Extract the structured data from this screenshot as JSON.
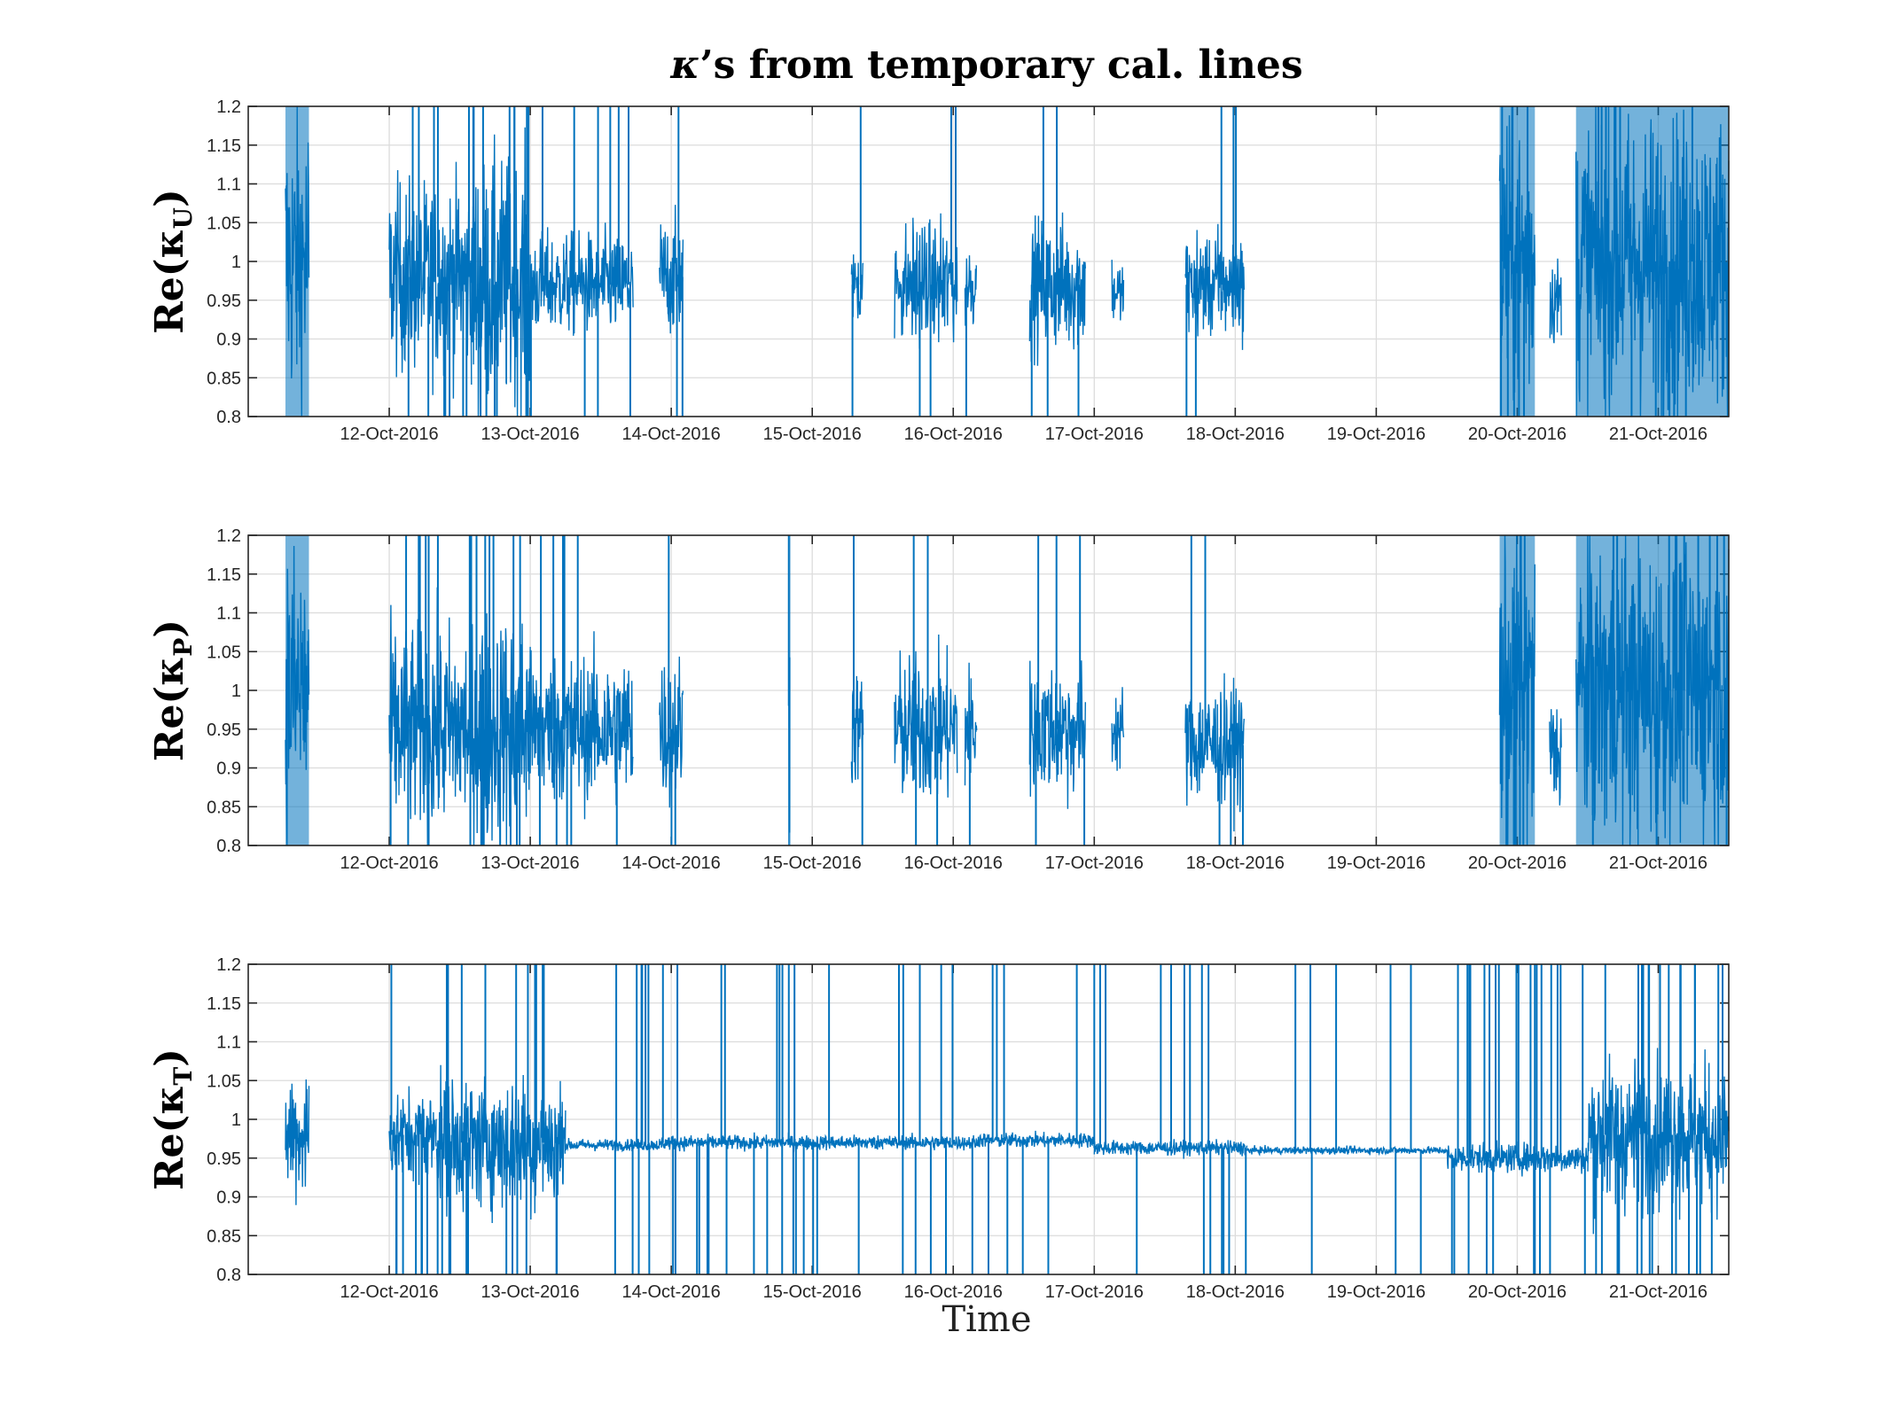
{
  "figure": {
    "title_symbol": "κ",
    "title_rest": "’s from temporary cal. lines",
    "xlabel": "Time",
    "line_color": "#0072BD"
  },
  "chart_data": [
    {
      "type": "line",
      "ylabel_main": "Re(κ",
      "ylabel_sub": "U",
      "ylabel_close": ")",
      "xlim": [
        "2016-10-11 00:00",
        "2016-10-21 12:00"
      ],
      "ylim": [
        0.8,
        1.2
      ],
      "yticks": [
        0.8,
        0.85,
        0.9,
        0.95,
        1,
        1.05,
        1.1,
        1.15,
        1.2
      ],
      "ytick_labels": [
        "0.8",
        "0.85",
        "0.9",
        "0.95",
        "1",
        "1.05",
        "1.1",
        "1.15",
        "1.2"
      ],
      "xtick_labels": [
        "12-Oct-2016",
        "13-Oct-2016",
        "14-Oct-2016",
        "15-Oct-2016",
        "16-Oct-2016",
        "17-Oct-2016",
        "18-Oct-2016",
        "19-Oct-2016",
        "20-Oct-2016",
        "21-Oct-2016"
      ],
      "grid": true,
      "series": [
        {
          "segments": [
            {
              "start": "2016-10-11 06:20",
              "end": "2016-10-11 10:20",
              "center": 1.0,
              "amp": 0.2,
              "spikes": 0
            },
            {
              "start": "2016-10-12 00:00",
              "end": "2016-10-12 14:00",
              "center": 0.98,
              "amp": 0.13,
              "spikes": 12
            },
            {
              "start": "2016-10-12 14:00",
              "end": "2016-10-13 00:00",
              "center": 0.97,
              "amp": 0.17,
              "spikes": 14
            },
            {
              "start": "2016-10-13 00:00",
              "end": "2016-10-13 17:30",
              "center": 0.97,
              "amp": 0.07,
              "spikes": 10
            },
            {
              "start": "2016-10-13 22:00",
              "end": "2016-10-14 02:00",
              "center": 0.98,
              "amp": 0.08,
              "spikes": 3
            },
            {
              "start": "2016-10-15 06:40",
              "end": "2016-10-15 08:40",
              "center": 0.97,
              "amp": 0.06,
              "spikes": 2
            },
            {
              "start": "2016-10-15 14:00",
              "end": "2016-10-16 00:40",
              "center": 0.97,
              "amp": 0.08,
              "spikes": 4
            },
            {
              "start": "2016-10-16 02:00",
              "end": "2016-10-16 04:00",
              "center": 0.97,
              "amp": 0.06,
              "spikes": 1
            },
            {
              "start": "2016-10-16 13:00",
              "end": "2016-10-16 22:30",
              "center": 0.97,
              "amp": 0.09,
              "spikes": 5
            },
            {
              "start": "2016-10-17 03:00",
              "end": "2016-10-17 05:00",
              "center": 0.96,
              "amp": 0.04,
              "spikes": 0
            },
            {
              "start": "2016-10-17 15:30",
              "end": "2016-10-18 01:30",
              "center": 0.97,
              "amp": 0.07,
              "spikes": 5
            },
            {
              "start": "2016-10-19 21:00",
              "end": "2016-10-20 03:00",
              "center": 1.0,
              "amp": 0.2,
              "spikes": 8
            },
            {
              "start": "2016-10-20 05:30",
              "end": "2016-10-20 07:30",
              "center": 0.95,
              "amp": 0.06,
              "spikes": 0
            },
            {
              "start": "2016-10-20 10:00",
              "end": "2016-10-21 12:00",
              "center": 1.0,
              "amp": 0.2,
              "spikes": 12
            }
          ]
        }
      ]
    },
    {
      "type": "line",
      "ylabel_main": "Re(κ",
      "ylabel_sub": "P",
      "ylabel_close": ")",
      "xlim": [
        "2016-10-11 00:00",
        "2016-10-21 12:00"
      ],
      "ylim": [
        0.8,
        1.2
      ],
      "yticks": [
        0.8,
        0.85,
        0.9,
        0.95,
        1,
        1.05,
        1.1,
        1.15,
        1.2
      ],
      "ytick_labels": [
        "0.8",
        "0.85",
        "0.9",
        "0.95",
        "1",
        "1.05",
        "1.1",
        "1.15",
        "1.2"
      ],
      "xtick_labels": [
        "12-Oct-2016",
        "13-Oct-2016",
        "14-Oct-2016",
        "15-Oct-2016",
        "16-Oct-2016",
        "17-Oct-2016",
        "18-Oct-2016",
        "19-Oct-2016",
        "20-Oct-2016",
        "21-Oct-2016"
      ],
      "grid": true,
      "series": [
        {
          "segments": [
            {
              "start": "2016-10-11 06:20",
              "end": "2016-10-11 10:20",
              "center": 1.0,
              "amp": 0.2,
              "spikes": 0
            },
            {
              "start": "2016-10-12 00:00",
              "end": "2016-10-12 14:00",
              "center": 0.95,
              "amp": 0.14,
              "spikes": 12
            },
            {
              "start": "2016-10-12 14:00",
              "end": "2016-10-13 00:00",
              "center": 0.95,
              "amp": 0.16,
              "spikes": 14
            },
            {
              "start": "2016-10-13 00:00",
              "end": "2016-10-13 17:30",
              "center": 0.95,
              "amp": 0.1,
              "spikes": 10
            },
            {
              "start": "2016-10-13 22:00",
              "end": "2016-10-14 02:00",
              "center": 0.95,
              "amp": 0.1,
              "spikes": 3
            },
            {
              "start": "2016-10-14 20:00",
              "end": "2016-10-14 20:10",
              "center": 0.98,
              "amp": 0.18,
              "spikes": 1
            },
            {
              "start": "2016-10-15 06:40",
              "end": "2016-10-15 08:40",
              "center": 0.95,
              "amp": 0.08,
              "spikes": 2
            },
            {
              "start": "2016-10-15 14:00",
              "end": "2016-10-16 00:40",
              "center": 0.95,
              "amp": 0.1,
              "spikes": 4
            },
            {
              "start": "2016-10-16 02:00",
              "end": "2016-10-16 04:00",
              "center": 0.95,
              "amp": 0.09,
              "spikes": 1
            },
            {
              "start": "2016-10-16 13:00",
              "end": "2016-10-16 22:30",
              "center": 0.95,
              "amp": 0.09,
              "spikes": 5
            },
            {
              "start": "2016-10-17 03:00",
              "end": "2016-10-17 05:00",
              "center": 0.95,
              "amp": 0.06,
              "spikes": 0
            },
            {
              "start": "2016-10-17 15:30",
              "end": "2016-10-18 01:30",
              "center": 0.93,
              "amp": 0.08,
              "spikes": 5
            },
            {
              "start": "2016-10-19 21:00",
              "end": "2016-10-20 03:00",
              "center": 1.0,
              "amp": 0.2,
              "spikes": 8
            },
            {
              "start": "2016-10-20 05:30",
              "end": "2016-10-20 07:30",
              "center": 0.92,
              "amp": 0.08,
              "spikes": 0
            },
            {
              "start": "2016-10-20 10:00",
              "end": "2016-10-21 12:00",
              "center": 1.0,
              "amp": 0.2,
              "spikes": 12
            }
          ]
        }
      ]
    },
    {
      "type": "line",
      "ylabel_main": "Re(κ",
      "ylabel_sub": "T",
      "ylabel_close": ")",
      "xlim": [
        "2016-10-11 00:00",
        "2016-10-21 12:00"
      ],
      "ylim": [
        0.8,
        1.2
      ],
      "yticks": [
        0.8,
        0.85,
        0.9,
        0.95,
        1,
        1.05,
        1.1,
        1.15,
        1.2
      ],
      "ytick_labels": [
        "0.8",
        "0.85",
        "0.9",
        "0.95",
        "1",
        "1.05",
        "1.1",
        "1.15",
        "1.2"
      ],
      "xtick_labels": [
        "12-Oct-2016",
        "13-Oct-2016",
        "14-Oct-2016",
        "15-Oct-2016",
        "16-Oct-2016",
        "17-Oct-2016",
        "18-Oct-2016",
        "19-Oct-2016",
        "20-Oct-2016",
        "21-Oct-2016"
      ],
      "grid": true,
      "series": [
        {
          "segments": [
            {
              "start": "2016-10-11 06:20",
              "end": "2016-10-11 10:20",
              "center": 0.98,
              "amp": 0.09,
              "spikes": 0
            },
            {
              "start": "2016-10-12 00:00",
              "end": "2016-10-12 08:00",
              "center": 0.98,
              "amp": 0.06,
              "spikes": 8
            },
            {
              "start": "2016-10-12 08:00",
              "end": "2016-10-13 06:00",
              "center": 0.97,
              "amp": 0.09,
              "spikes": 22
            },
            {
              "start": "2016-10-13 06:00",
              "end": "2016-10-13 22:00",
              "center": 0.967,
              "amp": 0.008,
              "spikes": 10
            },
            {
              "start": "2016-10-13 22:00",
              "end": "2016-10-14 02:00",
              "center": 0.97,
              "amp": 0.01,
              "spikes": 4
            },
            {
              "start": "2016-10-14 02:00",
              "end": "2016-10-15 12:00",
              "center": 0.97,
              "amp": 0.01,
              "spikes": 22
            },
            {
              "start": "2016-10-15 12:00",
              "end": "2016-10-16 04:00",
              "center": 0.97,
              "amp": 0.01,
              "spikes": 10
            },
            {
              "start": "2016-10-16 04:00",
              "end": "2016-10-17 00:00",
              "center": 0.973,
              "amp": 0.01,
              "spikes": 8
            },
            {
              "start": "2016-10-17 00:00",
              "end": "2016-10-18 02:00",
              "center": 0.963,
              "amp": 0.01,
              "spikes": 16
            },
            {
              "start": "2016-10-18 02:00",
              "end": "2016-10-19 12:00",
              "center": 0.96,
              "amp": 0.005,
              "spikes": 8
            },
            {
              "start": "2016-10-19 12:00",
              "end": "2016-10-20 12:00",
              "center": 0.95,
              "amp": 0.02,
              "spikes": 28
            },
            {
              "start": "2016-10-20 12:00",
              "end": "2016-10-21 12:00",
              "center": 0.98,
              "amp": 0.1,
              "spikes": 30
            }
          ]
        }
      ]
    }
  ]
}
